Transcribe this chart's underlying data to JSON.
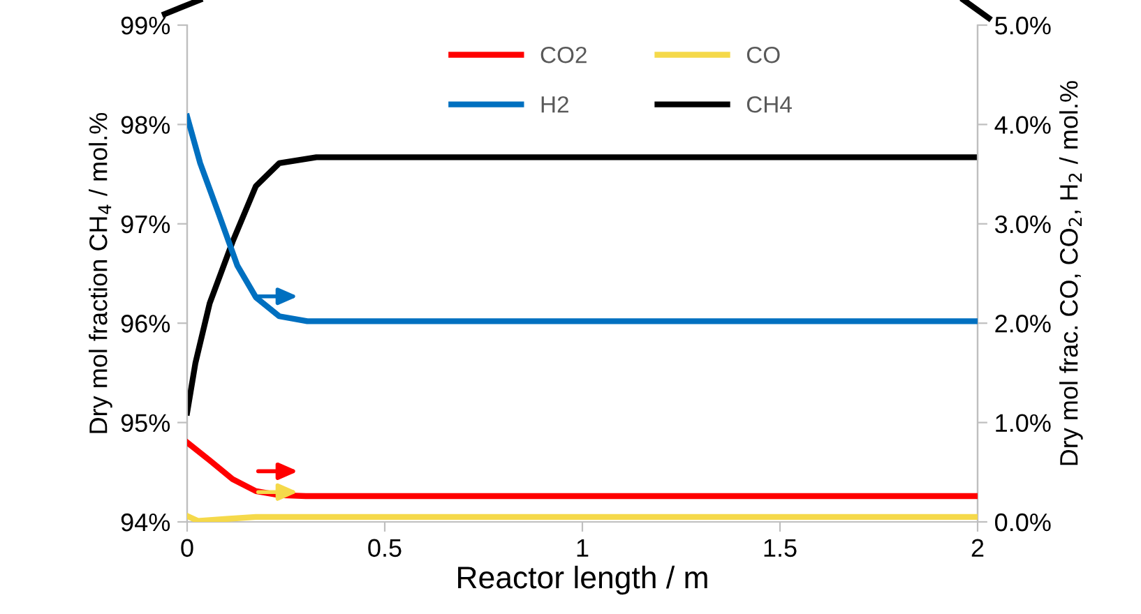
{
  "chart_data": {
    "type": "line",
    "xlabel": "Reactor length / m",
    "ylabel": "Dry mol fraction CH$_{4}$ / mol.%",
    "y2label": "Dry mol frac. CO, CO$_{2}$, H$_{2}$ / mol.%",
    "xlim": [
      0,
      2
    ],
    "xticks": [
      0,
      0.5,
      1,
      1.5,
      2
    ],
    "ylim": [
      94,
      99
    ],
    "yticks": [
      {
        "value": 94,
        "label": "94%"
      },
      {
        "value": 95,
        "label": "95%"
      },
      {
        "value": 96,
        "label": "96%"
      },
      {
        "value": 97,
        "label": "97%"
      },
      {
        "value": 98,
        "label": "98%"
      },
      {
        "value": 99,
        "label": "99%"
      }
    ],
    "y2lim": [
      0,
      5
    ],
    "y2ticks": [
      {
        "value": 0,
        "label": "0.0%"
      },
      {
        "value": 1,
        "label": "1.0%"
      },
      {
        "value": 2,
        "label": "2.0%"
      },
      {
        "value": 3,
        "label": "3.0%"
      },
      {
        "value": 4,
        "label": "4.0%"
      },
      {
        "value": 5,
        "label": "5.0%"
      }
    ],
    "grid": false,
    "legend": "top",
    "marker": "none",
    "line_style": "solid",
    "series": [
      {
        "name": "CO2",
        "color": "#ff0000",
        "axis": "y2",
        "x": [
          0,
          0.057,
          0.115,
          0.174,
          0.233,
          0.3,
          0.5,
          1,
          1.5,
          2
        ],
        "values": [
          0.8,
          0.62,
          0.43,
          0.31,
          0.27,
          0.26,
          0.26,
          0.26,
          0.26,
          0.26
        ]
      },
      {
        "name": "CO",
        "color": "#f5d94a",
        "axis": "y2",
        "x": [
          0,
          0.027,
          0.1,
          0.174,
          0.3,
          0.5,
          1,
          1.5,
          2
        ],
        "values": [
          0.06,
          0.01,
          0.03,
          0.05,
          0.05,
          0.05,
          0.05,
          0.05,
          0.05
        ]
      },
      {
        "name": "H2",
        "color": "#0070c0",
        "axis": "y2",
        "x": [
          0,
          0.033,
          0.08,
          0.127,
          0.174,
          0.233,
          0.304,
          0.5,
          1,
          1.5,
          2
        ],
        "values": [
          4.08,
          3.61,
          3.1,
          2.58,
          2.26,
          2.07,
          2.02,
          2.02,
          2.02,
          2.02,
          2.02
        ]
      },
      {
        "name": "CH4",
        "color": "#000000",
        "x": [
          0,
          0.021,
          0.057,
          0.115,
          0.174,
          0.233,
          0.327,
          0.5,
          1,
          1.5,
          2
        ],
        "values": [
          95.1,
          95.6,
          96.2,
          96.82,
          97.38,
          97.61,
          97.67,
          97.67,
          97.67,
          97.67,
          97.67
        ]
      }
    ]
  }
}
